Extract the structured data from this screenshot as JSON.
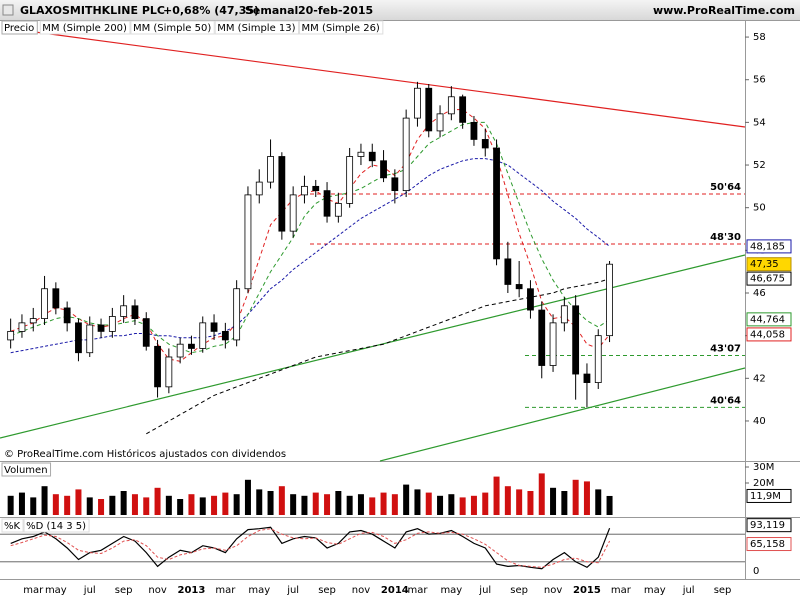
{
  "chart_data": [
    {
      "type": "candlestick",
      "title": "GLAXOSMITHKLINE PLC",
      "change": "+0,68% (47,35)",
      "period": "Semanal",
      "date": "20-feb-2015",
      "source": "www.ProRealTime.com",
      "label": "Precio",
      "footnote": "© ProRealTime.com Históricos ajustados con dividendos",
      "categories": [
        null,
        null,
        "mar",
        null,
        "may",
        null,
        null,
        "jul",
        null,
        null,
        "sep",
        null,
        null,
        "nov",
        null,
        null,
        "2013",
        null,
        null,
        "mar",
        null,
        null,
        "may",
        null,
        null,
        "jul",
        null,
        null,
        "sep",
        null,
        null,
        "nov",
        null,
        null,
        "2014",
        null,
        "mar",
        null,
        null,
        "may",
        null,
        null,
        "jul",
        null,
        null,
        "sep",
        null,
        null,
        "nov",
        null,
        null,
        "2015",
        null,
        null,
        "mar",
        null,
        null,
        "may",
        null,
        null,
        "jul",
        null,
        null,
        "sep",
        null
      ],
      "open": [
        43.8,
        44.2,
        44.6,
        44.8,
        46.2,
        45.3,
        44.6,
        43.2,
        44.5,
        44.2,
        44.9,
        45.4,
        44.8,
        43.5,
        41.6,
        43.0,
        43.6,
        43.4,
        44.6,
        44.2,
        43.8,
        46.2,
        50.6,
        51.2,
        52.4,
        48.9,
        50.6,
        51.0,
        50.8,
        49.6,
        50.2,
        52.4,
        52.6,
        52.2,
        51.4,
        50.8,
        54.2,
        55.6,
        53.6,
        54.4,
        55.2,
        54.0,
        53.2,
        52.8,
        47.6,
        46.4,
        46.2,
        45.2,
        42.6,
        44.6,
        45.4,
        42.2,
        41.8,
        44.0,
        null,
        null,
        null,
        null,
        null,
        null,
        null,
        null,
        null,
        null,
        null
      ],
      "high": [
        44.8,
        45.0,
        45.3,
        46.8,
        46.5,
        45.6,
        44.8,
        44.9,
        44.8,
        45.3,
        45.9,
        45.7,
        45.1,
        43.8,
        43.4,
        43.9,
        44.0,
        44.9,
        45.0,
        44.6,
        46.6,
        51.0,
        51.8,
        53.2,
        52.6,
        51.0,
        51.5,
        51.3,
        51.2,
        50.7,
        52.8,
        53.0,
        53.0,
        52.7,
        51.8,
        54.6,
        55.9,
        55.8,
        54.8,
        55.7,
        55.3,
        54.3,
        53.7,
        53.2,
        48.4,
        47.5,
        46.6,
        45.6,
        45.0,
        45.8,
        45.9,
        42.7,
        44.3,
        47.5,
        null,
        null,
        null,
        null,
        null,
        null,
        null,
        null,
        null,
        null,
        null
      ],
      "low": [
        43.4,
        43.9,
        44.2,
        44.5,
        45.0,
        44.2,
        42.8,
        43.0,
        43.9,
        43.9,
        44.6,
        44.5,
        43.3,
        41.1,
        41.3,
        42.7,
        43.1,
        43.2,
        43.8,
        43.4,
        43.5,
        46.0,
        50.2,
        50.9,
        48.5,
        48.6,
        50.2,
        50.5,
        49.3,
        49.3,
        50.0,
        52.0,
        51.9,
        51.2,
        50.2,
        50.5,
        53.8,
        53.3,
        53.3,
        54.1,
        53.7,
        52.9,
        52.4,
        47.3,
        46.0,
        45.8,
        44.8,
        42.0,
        42.3,
        44.2,
        41.0,
        40.64,
        41.5,
        43.7,
        null,
        null,
        null,
        null,
        null,
        null,
        null,
        null,
        null,
        null,
        null
      ],
      "close": [
        44.2,
        44.6,
        44.8,
        46.2,
        45.3,
        44.6,
        43.2,
        44.5,
        44.2,
        44.9,
        45.4,
        44.8,
        43.5,
        41.6,
        43.0,
        43.6,
        43.4,
        44.6,
        44.2,
        43.8,
        46.2,
        50.6,
        51.2,
        52.4,
        48.9,
        50.6,
        51.0,
        50.8,
        49.6,
        50.2,
        52.4,
        52.6,
        52.2,
        51.4,
        50.8,
        54.2,
        55.6,
        53.6,
        54.4,
        55.2,
        54.0,
        53.2,
        52.8,
        47.6,
        46.4,
        46.2,
        45.2,
        42.6,
        44.6,
        45.4,
        42.2,
        41.8,
        44.0,
        47.35,
        null,
        null,
        null,
        null,
        null,
        null,
        null,
        null,
        null,
        null,
        null
      ],
      "last_label": "47,35",
      "up_color": "#ffffff",
      "down_color": "#000000",
      "series": [
        {
          "name": "MM (Simple 200)",
          "color": "#000000",
          "last_label": "46,675",
          "values": [
            null,
            null,
            null,
            null,
            null,
            null,
            null,
            null,
            null,
            null,
            null,
            null,
            39.4,
            39.7,
            40.0,
            40.3,
            40.6,
            40.9,
            41.2,
            41.4,
            41.6,
            41.8,
            42.0,
            42.2,
            42.4,
            42.6,
            42.8,
            43.0,
            43.1,
            43.2,
            43.3,
            43.4,
            43.5,
            43.6,
            43.8,
            44.0,
            44.2,
            44.4,
            44.6,
            44.8,
            45.0,
            45.2,
            45.4,
            45.5,
            45.6,
            45.7,
            45.8,
            45.9,
            46.0,
            46.2,
            46.3,
            46.4,
            46.5,
            46.675,
            null,
            null,
            null,
            null,
            null,
            null,
            null,
            null,
            null,
            null,
            null
          ]
        },
        {
          "name": "MM (Simple 50)",
          "color": "#1a1aa8",
          "last_label": "48,185",
          "values": [
            43.2,
            43.3,
            43.4,
            43.5,
            43.6,
            43.7,
            43.8,
            43.8,
            43.9,
            44.0,
            44.0,
            44.1,
            44.1,
            44.0,
            44.0,
            43.9,
            43.9,
            43.9,
            44.0,
            44.2,
            44.5,
            45.0,
            45.6,
            46.2,
            46.6,
            47.1,
            47.5,
            47.9,
            48.3,
            48.7,
            49.1,
            49.5,
            49.8,
            50.1,
            50.4,
            50.7,
            51.1,
            51.5,
            51.8,
            52.0,
            52.2,
            52.3,
            52.3,
            52.2,
            52.0,
            51.6,
            51.2,
            50.8,
            50.3,
            49.9,
            49.5,
            49.0,
            48.6,
            48.185,
            null,
            null,
            null,
            null,
            null,
            null,
            null,
            null,
            null,
            null,
            null
          ]
        },
        {
          "name": "MM (Simple 13)",
          "color": "#e02020",
          "last_label": "44,058",
          "values": [
            44.2,
            44.4,
            44.6,
            45.0,
            45.3,
            45.2,
            44.8,
            44.5,
            44.4,
            44.5,
            44.8,
            45.0,
            44.6,
            43.6,
            42.9,
            42.8,
            43.2,
            43.6,
            43.9,
            44.0,
            44.6,
            46.0,
            47.6,
            49.2,
            49.8,
            50.4,
            50.7,
            50.8,
            50.4,
            50.2,
            50.9,
            51.6,
            52.0,
            51.9,
            51.5,
            52.1,
            53.2,
            53.9,
            54.3,
            54.6,
            54.6,
            54.2,
            53.7,
            52.4,
            50.6,
            48.8,
            47.3,
            45.6,
            44.8,
            44.9,
            44.4,
            43.6,
            43.4,
            44.058,
            null,
            null,
            null,
            null,
            null,
            null,
            null,
            null,
            null,
            null,
            null
          ]
        },
        {
          "name": "MM (Simple 26)",
          "color": "#2e9a2e",
          "last_label": "44,764",
          "values": [
            44.0,
            44.2,
            44.4,
            44.6,
            44.8,
            44.9,
            44.8,
            44.6,
            44.5,
            44.5,
            44.6,
            44.7,
            44.5,
            44.0,
            43.6,
            43.4,
            43.2,
            43.3,
            43.5,
            43.6,
            44.0,
            45.0,
            46.0,
            47.0,
            47.8,
            48.6,
            49.6,
            50.2,
            50.5,
            50.6,
            50.7,
            50.9,
            51.2,
            51.5,
            51.6,
            51.8,
            52.4,
            53.0,
            53.3,
            53.6,
            53.9,
            54.0,
            54.0,
            53.0,
            51.6,
            50.2,
            48.8,
            47.6,
            46.6,
            45.8,
            45.2,
            44.7,
            44.4,
            44.764,
            null,
            null,
            null,
            null,
            null,
            null,
            null,
            null,
            null,
            null,
            null
          ]
        }
      ],
      "levels": [
        {
          "value": 50.64,
          "label": "50'64",
          "color": "#e02020"
        },
        {
          "value": 48.3,
          "label": "48'30",
          "color": "#e02020"
        },
        {
          "value": 43.07,
          "label": "43'07",
          "color": "#2e9a2e"
        },
        {
          "value": 40.64,
          "label": "40'64",
          "color": "#2e9a2e"
        }
      ],
      "ylim": [
        38.17,
        58.8
      ],
      "yticks": [
        40,
        42,
        44,
        46,
        48,
        50,
        52,
        54,
        56,
        58
      ]
    },
    {
      "type": "bar",
      "label": "Volumen",
      "last_label": "11,9M",
      "up_color": "#000000",
      "down_color": "#d01010",
      "values": [
        12,
        14,
        11,
        18,
        13,
        12,
        16,
        11,
        10,
        12,
        15,
        13,
        11,
        17,
        12,
        10,
        13,
        11,
        12,
        14,
        13,
        22,
        16,
        15,
        18,
        13,
        12,
        14,
        13,
        15,
        12,
        13,
        11,
        14,
        13,
        19,
        16,
        14,
        12,
        13,
        11,
        12,
        14,
        24,
        18,
        16,
        15,
        26,
        17,
        15,
        22,
        21,
        16,
        11.9
      ],
      "ylim": [
        0,
        32.5
      ],
      "yticks": [
        {
          "value": 30,
          "label": "30M"
        },
        {
          "value": 20,
          "label": "20M"
        }
      ]
    },
    {
      "type": "line",
      "label": "%K",
      "series": [
        {
          "name": "%K",
          "color": "#000000",
          "last_label": "93,119",
          "values": [
            60,
            70,
            75,
            85,
            70,
            50,
            25,
            40,
            45,
            60,
            75,
            65,
            40,
            10,
            30,
            45,
            40,
            55,
            50,
            40,
            70,
            90,
            92,
            95,
            60,
            70,
            75,
            72,
            50,
            60,
            85,
            88,
            80,
            65,
            50,
            85,
            92,
            80,
            82,
            88,
            75,
            60,
            50,
            15,
            10,
            12,
            8,
            5,
            25,
            40,
            20,
            8,
            30,
            93.119
          ]
        },
        {
          "name": "%D (14 3 5)",
          "color": "#e05050",
          "last_label": "65,158",
          "values": [
            55,
            62,
            70,
            78,
            75,
            62,
            45,
            40,
            38,
            50,
            65,
            68,
            55,
            30,
            25,
            35,
            40,
            48,
            50,
            45,
            55,
            75,
            88,
            92,
            80,
            72,
            70,
            72,
            62,
            58,
            70,
            82,
            84,
            75,
            60,
            68,
            82,
            85,
            82,
            84,
            80,
            70,
            58,
            40,
            22,
            12,
            10,
            8,
            15,
            25,
            28,
            20,
            18,
            65.158
          ]
        }
      ],
      "bands": [
        20,
        80
      ],
      "ylim": [
        0,
        100
      ],
      "yticks": [
        0
      ]
    }
  ]
}
